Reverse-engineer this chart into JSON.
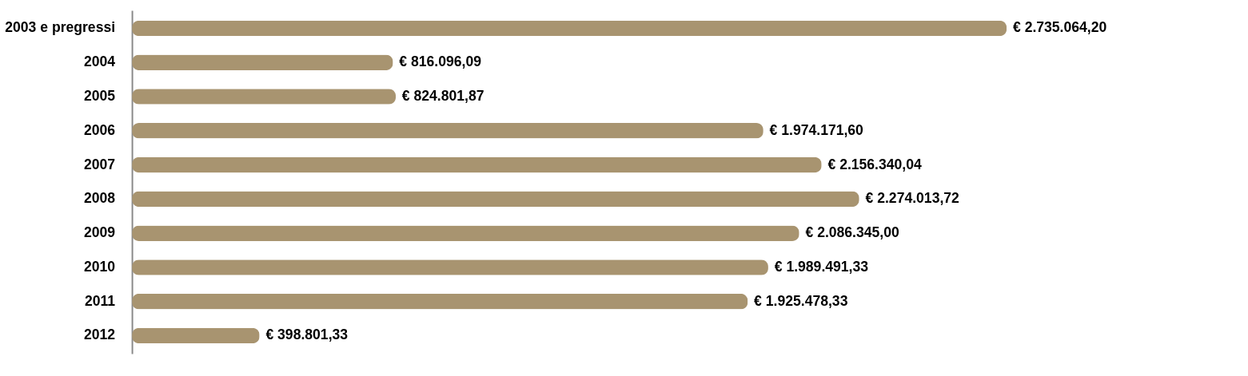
{
  "chart_data": {
    "type": "bar",
    "orientation": "horizontal",
    "categories": [
      "2003 e pregressi",
      "2004",
      "2005",
      "2006",
      "2007",
      "2008",
      "2009",
      "2010",
      "2011",
      "2012"
    ],
    "values": [
      2735064.2,
      816096.09,
      824801.87,
      1974171.6,
      2156340.04,
      2274013.72,
      2086345.0,
      1989491.33,
      1925478.33,
      398801.33
    ],
    "value_labels": [
      "€ 2.735.064,20",
      "€ 816.096,09",
      "€ 824.801,87",
      "€ 1.974.171,60",
      "€ 2.156.340,04",
      "€ 2.274.013,72",
      "€ 2.086.345,00",
      "€ 1.989.491,33",
      "€ 1.925.478,33",
      "€ 398.801,33"
    ],
    "color": "#a89470",
    "grid": false
  }
}
